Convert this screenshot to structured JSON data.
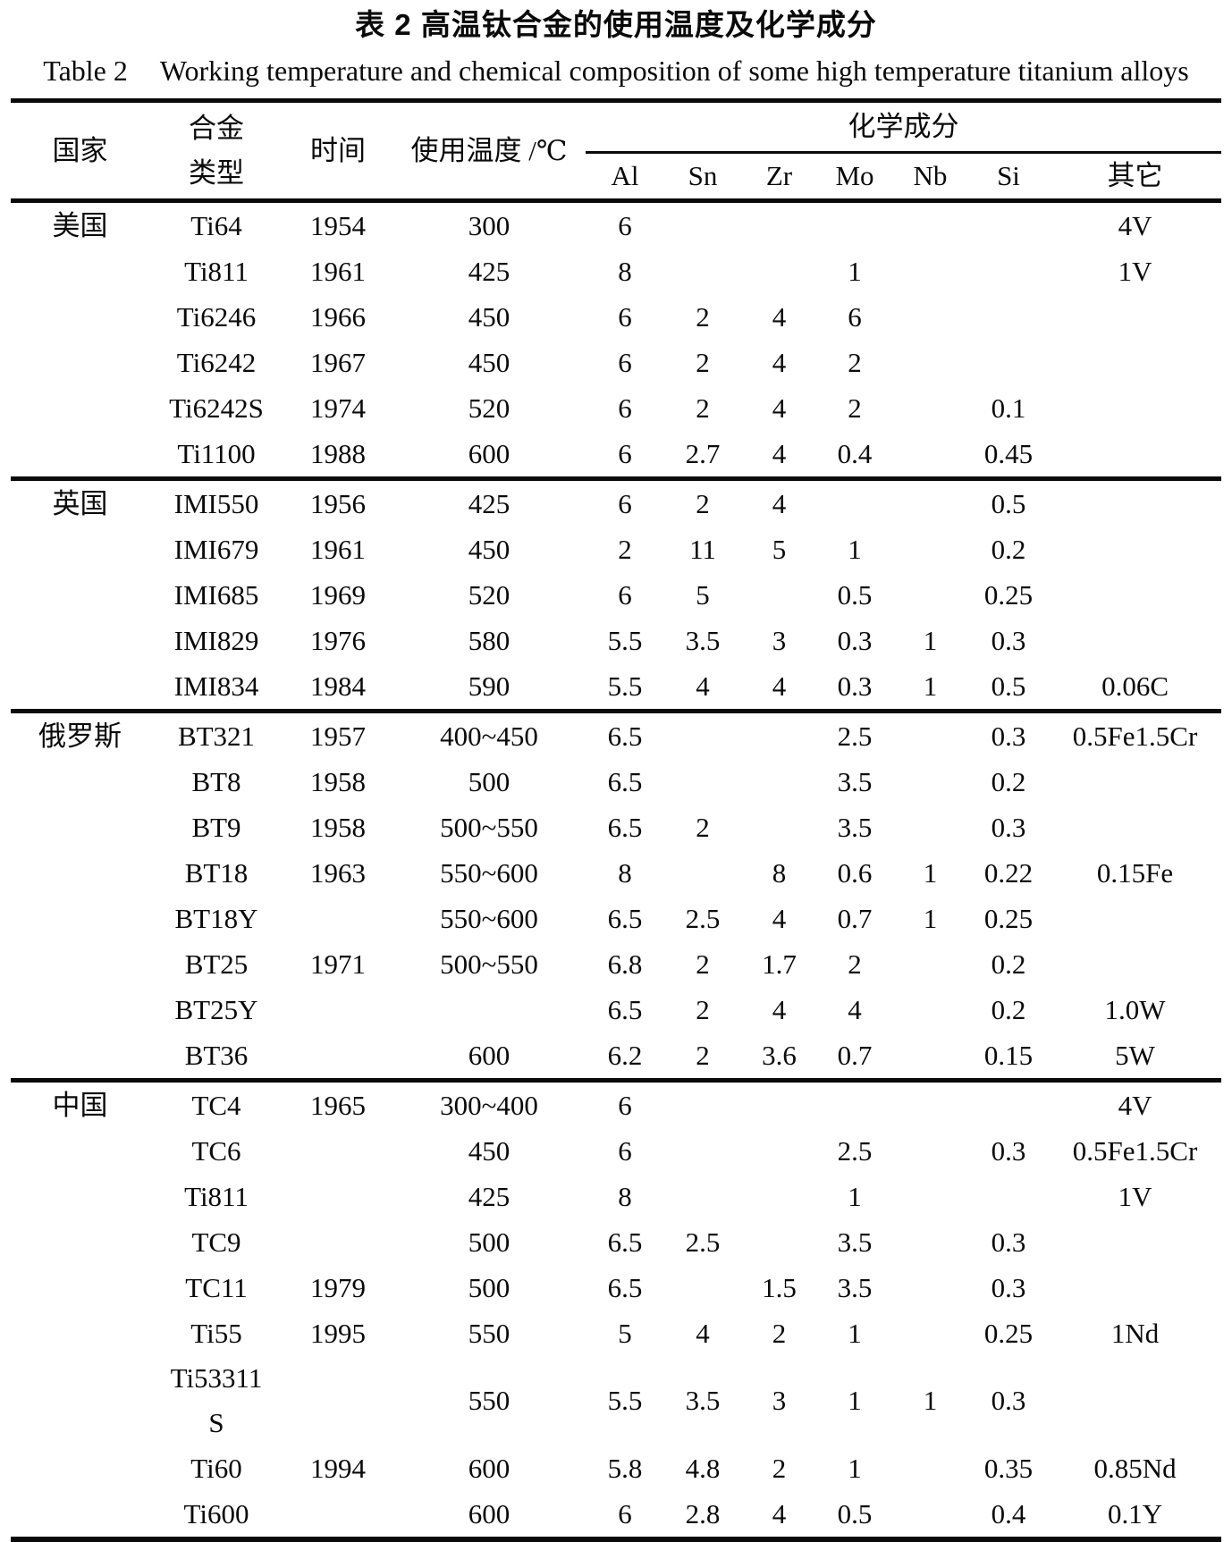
{
  "title_zh": "表 2 高温钛合金的使用温度及化学成分",
  "title_en": {
    "label": "Table 2",
    "text": "Working temperature and chemical composition of some high temperature titanium alloys"
  },
  "table": {
    "headers": {
      "country": "国家",
      "alloy": "合金\n类型",
      "year": "时间",
      "temp": "使用温度 /℃",
      "chem_group": "化学成分",
      "elements": [
        "Al",
        "Sn",
        "Zr",
        "Mo",
        "Nb",
        "Si",
        "其它"
      ]
    },
    "column_keys": [
      "country",
      "alloy",
      "year",
      "temp",
      "al",
      "sn",
      "zr",
      "mo",
      "nb",
      "si",
      "other"
    ],
    "sections": [
      {
        "country": "美国",
        "rows": [
          [
            "Ti64",
            "1954",
            "300",
            "6",
            "",
            "",
            "",
            "",
            "",
            "4V"
          ],
          [
            "Ti811",
            "1961",
            "425",
            "8",
            "",
            "",
            "1",
            "",
            "",
            "1V"
          ],
          [
            "Ti6246",
            "1966",
            "450",
            "6",
            "2",
            "4",
            "6",
            "",
            "",
            ""
          ],
          [
            "Ti6242",
            "1967",
            "450",
            "6",
            "2",
            "4",
            "2",
            "",
            "",
            ""
          ],
          [
            "Ti6242S",
            "1974",
            "520",
            "6",
            "2",
            "4",
            "2",
            "",
            "0.1",
            ""
          ],
          [
            "Ti1100",
            "1988",
            "600",
            "6",
            "2.7",
            "4",
            "0.4",
            "",
            "0.45",
            ""
          ]
        ]
      },
      {
        "country": "英国",
        "rows": [
          [
            "IMI550",
            "1956",
            "425",
            "6",
            "2",
            "4",
            "",
            "",
            "0.5",
            ""
          ],
          [
            "IMI679",
            "1961",
            "450",
            "2",
            "11",
            "5",
            "1",
            "",
            "0.2",
            ""
          ],
          [
            "IMI685",
            "1969",
            "520",
            "6",
            "5",
            "",
            "0.5",
            "",
            "0.25",
            ""
          ],
          [
            "IMI829",
            "1976",
            "580",
            "5.5",
            "3.5",
            "3",
            "0.3",
            "1",
            "0.3",
            ""
          ],
          [
            "IMI834",
            "1984",
            "590",
            "5.5",
            "4",
            "4",
            "0.3",
            "1",
            "0.5",
            "0.06C"
          ]
        ]
      },
      {
        "country": "俄罗斯",
        "rows": [
          [
            "BT321",
            "1957",
            "400~450",
            "6.5",
            "",
            "",
            "2.5",
            "",
            "0.3",
            "0.5Fe1.5Cr"
          ],
          [
            "BT8",
            "1958",
            "500",
            "6.5",
            "",
            "",
            "3.5",
            "",
            "0.2",
            ""
          ],
          [
            "BT9",
            "1958",
            "500~550",
            "6.5",
            "2",
            "",
            "3.5",
            "",
            "0.3",
            ""
          ],
          [
            "BT18",
            "1963",
            "550~600",
            "8",
            "",
            "8",
            "0.6",
            "1",
            "0.22",
            "0.15Fe"
          ],
          [
            "BT18Y",
            "",
            "550~600",
            "6.5",
            "2.5",
            "4",
            "0.7",
            "1",
            "0.25",
            ""
          ],
          [
            "BT25",
            "1971",
            "500~550",
            "6.8",
            "2",
            "1.7",
            "2",
            "",
            "0.2",
            ""
          ],
          [
            "BT25Y",
            "",
            "",
            "6.5",
            "2",
            "4",
            "4",
            "",
            "0.2",
            "1.0W"
          ],
          [
            "BT36",
            "",
            "600",
            "6.2",
            "2",
            "3.6",
            "0.7",
            "",
            "0.15",
            "5W"
          ]
        ]
      },
      {
        "country": "中国",
        "rows": [
          [
            "TC4",
            "1965",
            "300~400",
            "6",
            "",
            "",
            "",
            "",
            "",
            "4V"
          ],
          [
            "TC6",
            "",
            "450",
            "6",
            "",
            "",
            "2.5",
            "",
            "0.3",
            "0.5Fe1.5Cr"
          ],
          [
            "Ti811",
            "",
            "425",
            "8",
            "",
            "",
            "1",
            "",
            "",
            "1V"
          ],
          [
            "TC9",
            "",
            "500",
            "6.5",
            "2.5",
            "",
            "3.5",
            "",
            "0.3",
            ""
          ],
          [
            "TC11",
            "1979",
            "500",
            "6.5",
            "",
            "1.5",
            "3.5",
            "",
            "0.3",
            ""
          ],
          [
            "Ti55",
            "1995",
            "550",
            "5",
            "4",
            "2",
            "1",
            "",
            "0.25",
            "1Nd"
          ],
          [
            "Ti53311\nS",
            "",
            "550",
            "5.5",
            "3.5",
            "3",
            "1",
            "1",
            "0.3",
            ""
          ],
          [
            "Ti60",
            "1994",
            "600",
            "5.8",
            "4.8",
            "2",
            "1",
            "",
            "0.35",
            "0.85Nd"
          ],
          [
            "Ti600",
            "",
            "600",
            "6",
            "2.8",
            "4",
            "0.5",
            "",
            "0.4",
            "0.1Y"
          ]
        ]
      }
    ]
  }
}
